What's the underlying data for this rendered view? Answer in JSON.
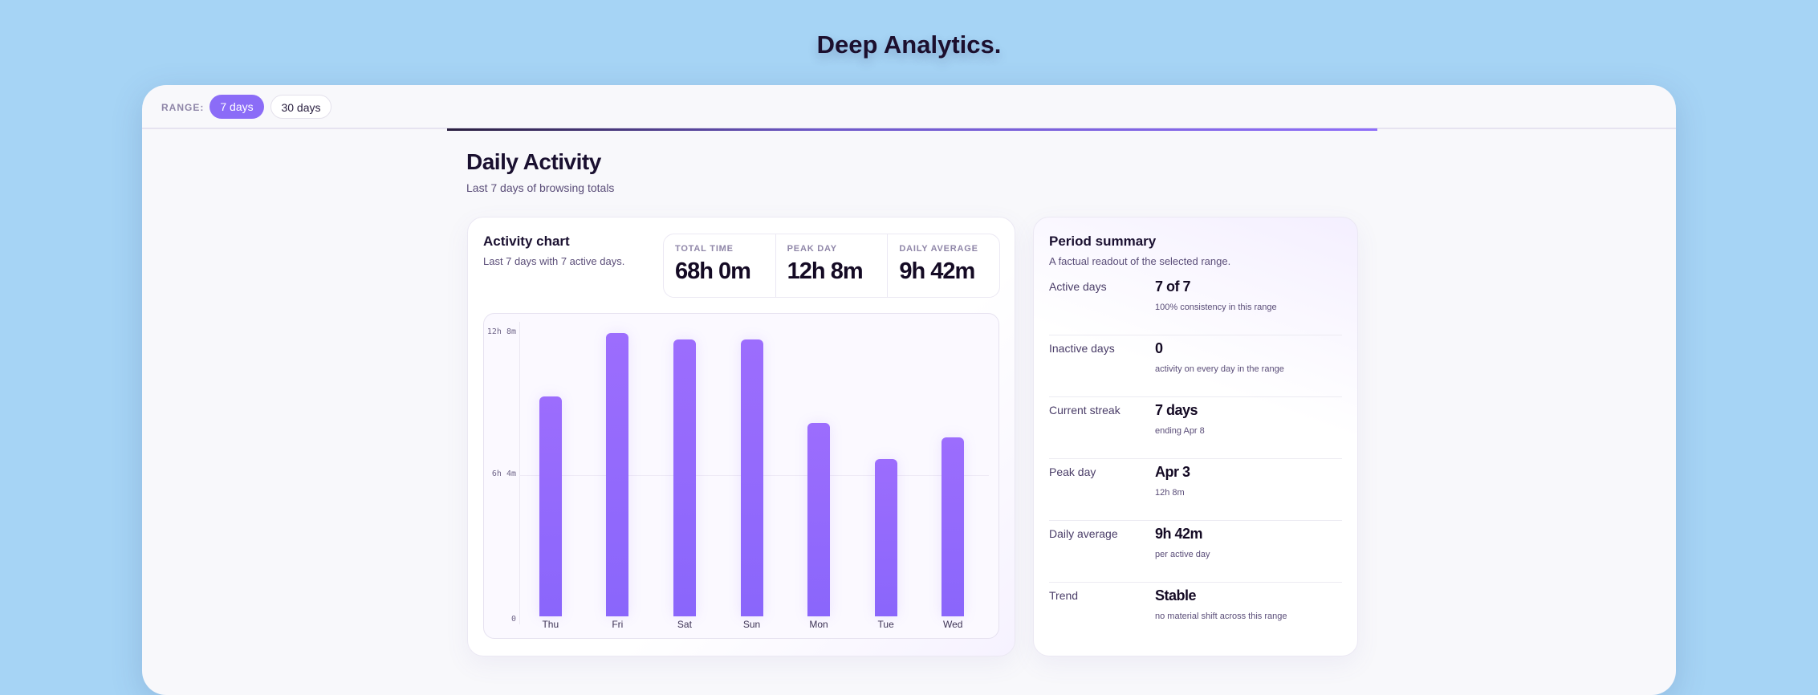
{
  "app_title": "Deep Analytics.",
  "range": {
    "label": "RANGE:",
    "options": [
      "7 days",
      "30 days"
    ],
    "selected": "7 days"
  },
  "header": {
    "title": "Daily Activity",
    "subtitle": "Last 7 days of browsing totals"
  },
  "activity": {
    "title": "Activity chart",
    "subtitle": "Last 7 days with 7 active days.",
    "stats": [
      {
        "label": "TOTAL TIME",
        "value": "68h 0m"
      },
      {
        "label": "PEAK DAY",
        "value": "12h 8m"
      },
      {
        "label": "DAILY AVERAGE",
        "value": "9h 42m"
      }
    ]
  },
  "chart_data": {
    "type": "bar",
    "categories": [
      "Thu",
      "Fri",
      "Sat",
      "Sun",
      "Mon",
      "Tue",
      "Wed"
    ],
    "values_minutes": [
      566,
      728,
      712,
      712,
      498,
      404,
      460
    ],
    "y_ticks": [
      "0",
      "6h 4m",
      "12h 8m"
    ],
    "y_tick_values_minutes": [
      0,
      364,
      728
    ],
    "ylim": [
      0,
      728
    ],
    "bar_color": "#8b6cf7"
  },
  "summary": {
    "title": "Period summary",
    "subtitle": "A factual readout of the selected range.",
    "rows": [
      {
        "label": "Active days",
        "value": "7 of 7",
        "note": "100% consistency in this range"
      },
      {
        "label": "Inactive days",
        "value": "0",
        "note": "activity on every day in the range"
      },
      {
        "label": "Current streak",
        "value": "7 days",
        "note": "ending Apr 8"
      },
      {
        "label": "Peak day",
        "value": "Apr 3",
        "note": "12h 8m"
      },
      {
        "label": "Daily average",
        "value": "9h 42m",
        "note": "per active day"
      },
      {
        "label": "Trend",
        "value": "Stable",
        "note": "no material shift across this range"
      }
    ]
  }
}
